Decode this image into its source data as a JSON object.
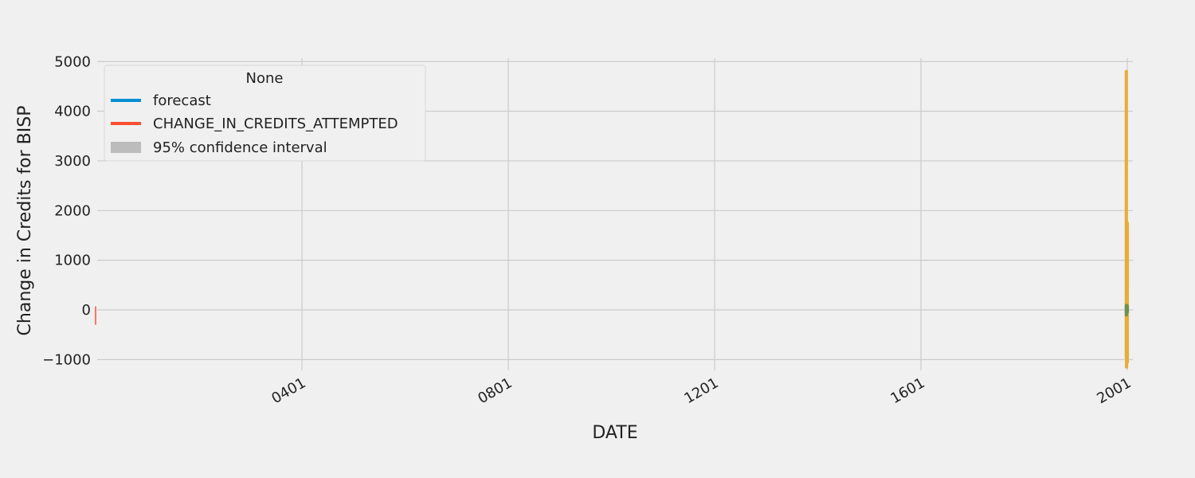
{
  "chart_data": {
    "type": "line",
    "xlabel": "DATE",
    "ylabel": "Change in Credits for BISP",
    "ylim": [
      -1200,
      5100
    ],
    "yticks": [
      -1000,
      0,
      1000,
      2000,
      3000,
      4000,
      5000
    ],
    "xlim": [
      1,
      2001.4
    ],
    "x_ticks": [
      {
        "value": 401,
        "label": "0401"
      },
      {
        "value": 801,
        "label": "0801"
      },
      {
        "value": 1201,
        "label": "1201"
      },
      {
        "value": 1601,
        "label": "1601"
      },
      {
        "value": 2001,
        "label": "2001"
      }
    ],
    "grid": true,
    "legend": {
      "title": "None",
      "placement": "top-left",
      "entries": [
        {
          "label": "forecast",
          "color": "#008fd5",
          "kind": "line"
        },
        {
          "label": "CHANGE_IN_CREDITS_ATTEMPTED",
          "color": "#fc4f30",
          "kind": "line"
        },
        {
          "label": "95% confidence interval",
          "color": "#bcbcbc",
          "kind": "patch"
        }
      ]
    },
    "series": [
      {
        "label_ref": "CHANGE_IN_CREDITS_ATTEMPTED",
        "color": "#fc4f30",
        "points": [
          [
            1,
            70
          ],
          [
            1,
            -300
          ]
        ]
      },
      {
        "color": "#e5ae38",
        "points": [
          [
            1999.0,
            -950
          ],
          [
            1999.1,
            4800
          ],
          [
            1999.2,
            4800
          ],
          [
            1999.3,
            -950
          ],
          [
            1999.4,
            1200
          ],
          [
            1999.5,
            -1150
          ],
          [
            1999.6,
            950
          ],
          [
            1999.7,
            -1150
          ],
          [
            1999.8,
            900
          ],
          [
            1999.9,
            -1050
          ],
          [
            2000.0,
            1200
          ],
          [
            2000.1,
            -1000
          ],
          [
            2000.2,
            1150
          ],
          [
            2000.3,
            -1050
          ],
          [
            2000.4,
            1550
          ],
          [
            2000.5,
            -1000
          ],
          [
            2000.6,
            1600
          ],
          [
            2000.7,
            -1050
          ],
          [
            2000.8,
            1700
          ],
          [
            2000.9,
            -1050
          ],
          [
            2001.0,
            1750
          ],
          [
            2001.1,
            -1050
          ],
          [
            2001.2,
            1700
          ]
        ]
      },
      {
        "color": "#6d904f",
        "points": [
          [
            1999.0,
            80
          ],
          [
            1999.2,
            -100
          ],
          [
            1999.4,
            90
          ],
          [
            1999.6,
            -80
          ],
          [
            1999.8,
            60
          ],
          [
            2000.0,
            -40
          ],
          [
            2000.2,
            50
          ],
          [
            2000.4,
            -30
          ],
          [
            2000.6,
            70
          ],
          [
            2000.8,
            -40
          ],
          [
            2001.0,
            80
          ],
          [
            2001.2,
            -50
          ]
        ]
      }
    ]
  }
}
